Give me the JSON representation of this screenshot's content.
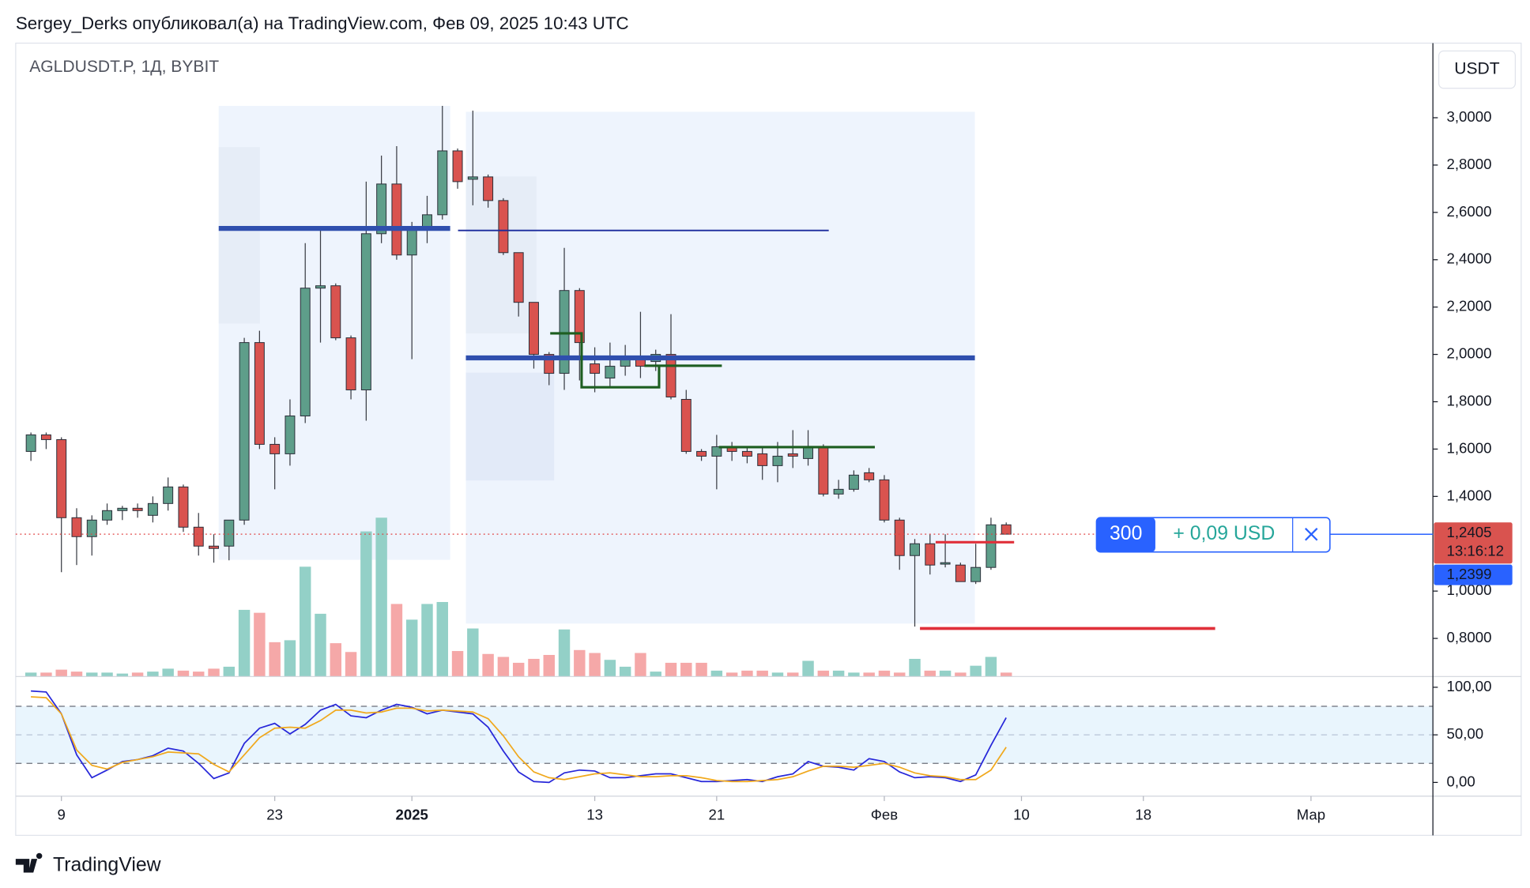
{
  "header": "Sergey_Derks опубликовал(а) на TradingView.com, Фев 09, 2025 10:43 UTC",
  "footer": "TradingView",
  "chart_data": {
    "type": "candlestick",
    "title": "AGLDUSDT.P, 1Д, BYBIT",
    "currency": "USDT",
    "up_color": "#5e9e8a",
    "down_color": "#d9534f",
    "volume_up_color": "#93d0c7",
    "volume_down_color": "#f5a8a8",
    "x": [
      "2024-12-07",
      "2024-12-08",
      "2024-12-09",
      "2024-12-10",
      "2024-12-11",
      "2024-12-12",
      "2024-12-13",
      "2024-12-14",
      "2024-12-15",
      "2024-12-16",
      "2024-12-17",
      "2024-12-18",
      "2024-12-19",
      "2024-12-20",
      "2024-12-21",
      "2024-12-22",
      "2024-12-23",
      "2024-12-24",
      "2024-12-25",
      "2024-12-26",
      "2024-12-27",
      "2024-12-28",
      "2024-12-29",
      "2024-12-30",
      "2024-12-31",
      "2025-01-01",
      "2025-01-02",
      "2025-01-03",
      "2025-01-04",
      "2025-01-05",
      "2025-01-06",
      "2025-01-07",
      "2025-01-08",
      "2025-01-09",
      "2025-01-10",
      "2025-01-11",
      "2025-01-12",
      "2025-01-13",
      "2025-01-14",
      "2025-01-15",
      "2025-01-16",
      "2025-01-17",
      "2025-01-18",
      "2025-01-19",
      "2025-01-20",
      "2025-01-21",
      "2025-01-22",
      "2025-01-23",
      "2025-01-24",
      "2025-01-25",
      "2025-01-26",
      "2025-01-27",
      "2025-01-28",
      "2025-01-29",
      "2025-01-30",
      "2025-01-31",
      "2025-02-01",
      "2025-02-02",
      "2025-02-03",
      "2025-02-04",
      "2025-02-05",
      "2025-02-06",
      "2025-02-07",
      "2025-02-08",
      "2025-02-09"
    ],
    "open": [
      1.59,
      1.66,
      1.64,
      1.31,
      1.23,
      1.3,
      1.34,
      1.35,
      1.32,
      1.37,
      1.44,
      1.27,
      1.19,
      1.19,
      1.3,
      2.05,
      1.62,
      1.58,
      1.74,
      2.28,
      2.29,
      2.07,
      1.85,
      2.51,
      2.72,
      2.42,
      2.54,
      2.59,
      2.86,
      2.74,
      2.75,
      2.65,
      2.43,
      2.22,
      2.0,
      1.92,
      2.27,
      1.96,
      1.9,
      1.95,
      1.98,
      1.97,
      2.0,
      1.81,
      1.59,
      1.57,
      1.61,
      1.59,
      1.58,
      1.53,
      1.58,
      1.56,
      1.61,
      1.41,
      1.43,
      1.5,
      1.47,
      1.3,
      1.15,
      1.2,
      1.12,
      1.11,
      1.04,
      1.1,
      1.28
    ],
    "high": [
      1.67,
      1.67,
      1.65,
      1.35,
      1.32,
      1.37,
      1.36,
      1.37,
      1.4,
      1.48,
      1.45,
      1.33,
      1.24,
      1.3,
      2.07,
      2.1,
      1.65,
      1.81,
      2.47,
      2.53,
      2.3,
      2.08,
      2.73,
      2.84,
      2.88,
      2.56,
      2.67,
      3.05,
      2.87,
      3.03,
      2.76,
      2.66,
      2.43,
      2.22,
      2.01,
      2.45,
      2.28,
      2.03,
      2.05,
      2.04,
      2.18,
      2.02,
      2.17,
      1.85,
      1.6,
      1.66,
      1.63,
      1.61,
      1.61,
      1.63,
      1.68,
      1.68,
      1.62,
      1.47,
      1.51,
      1.52,
      1.49,
      1.31,
      1.22,
      1.24,
      1.24,
      1.12,
      1.2,
      1.31,
      1.29
    ],
    "low": [
      1.55,
      1.6,
      1.08,
      1.11,
      1.15,
      1.28,
      1.3,
      1.31,
      1.29,
      1.34,
      1.25,
      1.15,
      1.12,
      1.13,
      1.28,
      1.6,
      1.43,
      1.53,
      1.71,
      2.05,
      2.06,
      1.81,
      1.72,
      2.47,
      2.4,
      1.98,
      2.47,
      2.57,
      2.7,
      2.63,
      2.62,
      2.42,
      2.16,
      1.94,
      1.87,
      1.85,
      1.89,
      1.84,
      1.86,
      1.91,
      1.9,
      1.93,
      1.81,
      1.58,
      1.55,
      1.43,
      1.55,
      1.54,
      1.47,
      1.46,
      1.52,
      1.53,
      1.4,
      1.39,
      1.42,
      1.46,
      1.29,
      1.09,
      0.85,
      1.07,
      1.1,
      1.04,
      1.03,
      1.09,
      1.24
    ],
    "close": [
      1.66,
      1.64,
      1.31,
      1.23,
      1.3,
      1.34,
      1.35,
      1.34,
      1.37,
      1.44,
      1.27,
      1.19,
      1.18,
      1.3,
      2.05,
      1.62,
      1.58,
      1.74,
      2.28,
      2.29,
      2.07,
      1.85,
      2.51,
      2.72,
      2.42,
      2.54,
      2.59,
      2.86,
      2.73,
      2.75,
      2.65,
      2.43,
      2.22,
      2.0,
      1.92,
      2.27,
      2.05,
      1.92,
      1.95,
      1.98,
      1.95,
      2.0,
      1.82,
      1.59,
      1.57,
      1.61,
      1.59,
      1.57,
      1.53,
      1.57,
      1.57,
      1.61,
      1.41,
      1.43,
      1.49,
      1.47,
      1.3,
      1.15,
      1.2,
      1.11,
      1.12,
      1.04,
      1.1,
      1.28,
      1.2405
    ],
    "volume": [
      4,
      4,
      7,
      5,
      4,
      4,
      3,
      4,
      5,
      8,
      6,
      5,
      8,
      10,
      68,
      65,
      35,
      37,
      112,
      64,
      34,
      25,
      148,
      162,
      74,
      58,
      74,
      76,
      26,
      49,
      23,
      20,
      14,
      18,
      22,
      48,
      27,
      24,
      17,
      10,
      24,
      5,
      14,
      14,
      14,
      6,
      4,
      6,
      6,
      4,
      4,
      16,
      6,
      6,
      4,
      4,
      6,
      4,
      18,
      6,
      6,
      4,
      11,
      20,
      4
    ],
    "volume_ylim": [
      0,
      645
    ],
    "xlim": [
      "2024-12-06",
      "2025-03-09"
    ],
    "xticks": [
      {
        "value": "2024-12-09",
        "label": "9"
      },
      {
        "value": "2024-12-23",
        "label": "23"
      },
      {
        "value": "2025-01-01",
        "label": "2025"
      },
      {
        "value": "2025-01-13",
        "label": "13"
      },
      {
        "value": "2025-01-21",
        "label": "21"
      },
      {
        "value": "2025-02-01",
        "label": "Фев"
      },
      {
        "value": "2025-02-10",
        "label": "10"
      },
      {
        "value": "2025-02-18",
        "label": "18"
      },
      {
        "value": "2025-03-01",
        "label": "Мар"
      }
    ],
    "ylim": [
      0.639,
      3.311
    ],
    "yticks": [
      {
        "value": 3,
        "label": "3,0000"
      },
      {
        "value": 2.8,
        "label": "2,8000"
      },
      {
        "value": 2.6,
        "label": "2,6000"
      },
      {
        "value": 2.4,
        "label": "2,4000"
      },
      {
        "value": 2.2,
        "label": "2,2000"
      },
      {
        "value": 2,
        "label": "2,0000"
      },
      {
        "value": 1.8,
        "label": "1,8000"
      },
      {
        "value": 1.6,
        "label": "1,6000"
      },
      {
        "value": 1.4,
        "label": "1,4000"
      },
      {
        "value": 1,
        "label": "1,0000"
      },
      {
        "value": 0.8,
        "label": "0,8000"
      }
    ],
    "last_price": {
      "value": 1.2405,
      "label": "1,2405",
      "countdown": "13:16:12"
    },
    "order": {
      "qty": "300",
      "pnl": "+ 0,09 USD",
      "price": {
        "value": 1.2399,
        "label": "1,2399"
      }
    },
    "stoch": {
      "ylim": [
        -14.4,
        111.3
      ],
      "yticks": [
        {
          "value": 100,
          "label": "100,00"
        },
        {
          "value": 50,
          "label": "50,00"
        },
        {
          "value": 0,
          "label": "0,00"
        }
      ],
      "bands": [
        80,
        50,
        20
      ],
      "series": [
        {
          "color": "#2727d9",
          "values": [
            96,
            95,
            72,
            29,
            5,
            13,
            22,
            24,
            28,
            36,
            33,
            20,
            4,
            10,
            41,
            57,
            62,
            51,
            61,
            76,
            82,
            70,
            68,
            76,
            82,
            79,
            72,
            76,
            74,
            72,
            58,
            33,
            11,
            1,
            0,
            10,
            13,
            12,
            5,
            5,
            7,
            9,
            9,
            5,
            1,
            1,
            2,
            3,
            1,
            6,
            9,
            22,
            17,
            16,
            13,
            25,
            22,
            11,
            5,
            6,
            5,
            1,
            8,
            39,
            68
          ]
        },
        {
          "color": "#f0a81c",
          "values": [
            90,
            89,
            72,
            34,
            18,
            14,
            21,
            24,
            27,
            32,
            31,
            30,
            19,
            11,
            29,
            47,
            57,
            58,
            57,
            65,
            76,
            76,
            73,
            74,
            78,
            78,
            75,
            76,
            75,
            74,
            67,
            49,
            27,
            11,
            5,
            3,
            6,
            9,
            10,
            8,
            6,
            6,
            7,
            7,
            5,
            2,
            1,
            1,
            2,
            3,
            6,
            12,
            17,
            17,
            16,
            18,
            20,
            16,
            10,
            7,
            6,
            3,
            3,
            13,
            37
          ]
        }
      ]
    }
  }
}
